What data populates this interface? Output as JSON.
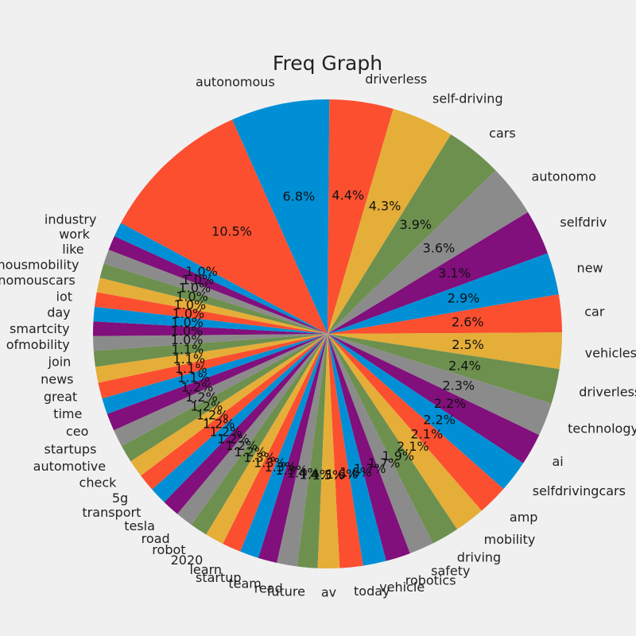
{
  "chart_data": {
    "type": "pie",
    "title": "Freq Graph",
    "start_angle_deg": 114,
    "direction": "clockwise",
    "palette": [
      "#008fd5",
      "#fc4f30",
      "#e5ae38",
      "#6d904f",
      "#8b8b8b",
      "#810f7c"
    ],
    "slices": [
      {
        "label": "autonomous",
        "value": 6.8
      },
      {
        "label": "driverless",
        "value": 4.4
      },
      {
        "label": "self-driving",
        "value": 4.3
      },
      {
        "label": "cars",
        "value": 3.9
      },
      {
        "label": "autonomo",
        "value": 3.6
      },
      {
        "label": "selfdriv",
        "value": 3.1
      },
      {
        "label": "new",
        "value": 2.9
      },
      {
        "label": "car",
        "value": 2.6
      },
      {
        "label": "vehicles",
        "value": 2.5
      },
      {
        "label": "driverless",
        "value": 2.4
      },
      {
        "label": "technology",
        "value": 2.3
      },
      {
        "label": "ai",
        "value": 2.2
      },
      {
        "label": "selfdrivingcars",
        "value": 2.2
      },
      {
        "label": "amp",
        "value": 2.1
      },
      {
        "label": "mobility",
        "value": 2.1
      },
      {
        "label": "driving",
        "value": 1.9
      },
      {
        "label": "safety",
        "value": 1.7
      },
      {
        "label": "robotics",
        "value": 1.7
      },
      {
        "label": "vehicle",
        "value": 1.6
      },
      {
        "label": "today",
        "value": 1.6
      },
      {
        "label": "av",
        "value": 1.5
      },
      {
        "label": "future",
        "value": 1.4
      },
      {
        "label": "read",
        "value": 1.4
      },
      {
        "label": "team",
        "value": 1.3
      },
      {
        "label": "startup",
        "value": 1.3
      },
      {
        "label": "learn",
        "value": 1.3
      },
      {
        "label": "2020",
        "value": 1.3
      },
      {
        "label": "robot",
        "value": 1.2
      },
      {
        "label": "road",
        "value": 1.2
      },
      {
        "label": "tesla",
        "value": 1.2
      },
      {
        "label": "transport",
        "value": 1.2
      },
      {
        "label": "5g",
        "value": 1.2
      },
      {
        "label": "check",
        "value": 1.2
      },
      {
        "label": "automotive",
        "value": 1.2
      },
      {
        "label": "startups",
        "value": 1.2
      },
      {
        "label": "ceo",
        "value": 1.2
      },
      {
        "label": "time",
        "value": 1.1
      },
      {
        "label": "great",
        "value": 1.1
      },
      {
        "label": "news",
        "value": 1.1
      },
      {
        "label": "join",
        "value": 1.1
      },
      {
        "label": "ofmobility",
        "value": 1.0
      },
      {
        "label": "smartcity",
        "value": 1.0
      },
      {
        "label": "day",
        "value": 1.0
      },
      {
        "label": "iot",
        "value": 1.0
      },
      {
        "label": "nomouscars",
        "value": 1.0
      },
      {
        "label": "mousmobility",
        "value": 1.0
      },
      {
        "label": "like",
        "value": 1.0
      },
      {
        "label": "work",
        "value": 1.0
      },
      {
        "label": "industry",
        "value": 1.0
      },
      {
        "label": "",
        "value": 10.5
      }
    ]
  }
}
